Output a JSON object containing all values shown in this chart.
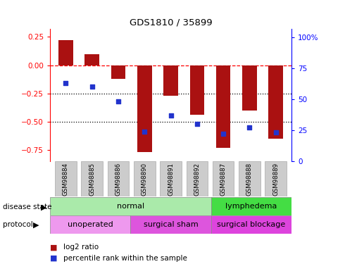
{
  "title": "GDS1810 / 35899",
  "samples": [
    "GSM98884",
    "GSM98885",
    "GSM98886",
    "GSM98890",
    "GSM98891",
    "GSM98892",
    "GSM98887",
    "GSM98888",
    "GSM98889"
  ],
  "log2_ratio": [
    0.22,
    0.1,
    -0.12,
    -0.77,
    -0.27,
    -0.44,
    -0.73,
    -0.4,
    -0.65
  ],
  "percentile_rank": [
    63,
    60,
    48,
    24,
    37,
    30,
    22,
    27,
    23
  ],
  "bar_color": "#aa1111",
  "dot_color": "#2233cc",
  "ylim_left": [
    -0.85,
    0.32
  ],
  "ylim_right": [
    0,
    106.67
  ],
  "yticks_left": [
    -0.75,
    -0.5,
    -0.25,
    0,
    0.25
  ],
  "yticks_right_vals": [
    0,
    25,
    50,
    75,
    100
  ],
  "yticks_right_labels": [
    "0",
    "25",
    "50",
    "75",
    "100%"
  ],
  "disease_state": [
    {
      "label": "normal",
      "start": 0,
      "end": 6,
      "color": "#aaeaaa"
    },
    {
      "label": "lymphedema",
      "start": 6,
      "end": 9,
      "color": "#44dd44"
    }
  ],
  "protocol": [
    {
      "label": "unoperated",
      "start": 0,
      "end": 3,
      "color": "#ee99ee"
    },
    {
      "label": "surgical sham",
      "start": 3,
      "end": 6,
      "color": "#dd55dd"
    },
    {
      "label": "surgical blockage",
      "start": 6,
      "end": 9,
      "color": "#dd44dd"
    }
  ],
  "legend_log2": "log2 ratio",
  "legend_pct": "percentile rank within the sample",
  "hlines": [
    0,
    -0.25,
    -0.5
  ],
  "hline_styles": [
    "dashed",
    "dotted",
    "dotted"
  ],
  "hline_colors": [
    "red",
    "black",
    "black"
  ]
}
